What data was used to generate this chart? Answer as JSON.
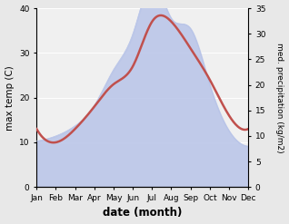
{
  "months": [
    "Jan",
    "Feb",
    "Mar",
    "Apr",
    "May",
    "Jun",
    "Jul",
    "Aug",
    "Sep",
    "Oct",
    "Nov",
    "Dec"
  ],
  "temp": [
    13,
    10,
    13,
    18,
    23,
    27,
    37,
    37,
    31,
    24,
    16,
    13
  ],
  "precip": [
    9,
    10,
    12,
    16,
    23,
    30,
    40,
    33,
    31,
    20,
    11,
    8
  ],
  "temp_color": "#c0504d",
  "precip_fill_color": "#b8c4e8",
  "precip_edge_color": "#b8c4e8",
  "left_ylim": [
    0,
    40
  ],
  "right_ylim": [
    0,
    35
  ],
  "left_yticks": [
    0,
    10,
    20,
    30,
    40
  ],
  "right_yticks": [
    0,
    5,
    10,
    15,
    20,
    25,
    30,
    35
  ],
  "xlabel": "date (month)",
  "ylabel_left": "max temp (C)",
  "ylabel_right": "med. precipitation (kg/m2)",
  "bg_color": "#f0f0f0",
  "fig_bg_color": "#e8e8e8",
  "figsize": [
    3.18,
    2.47
  ],
  "dpi": 100
}
